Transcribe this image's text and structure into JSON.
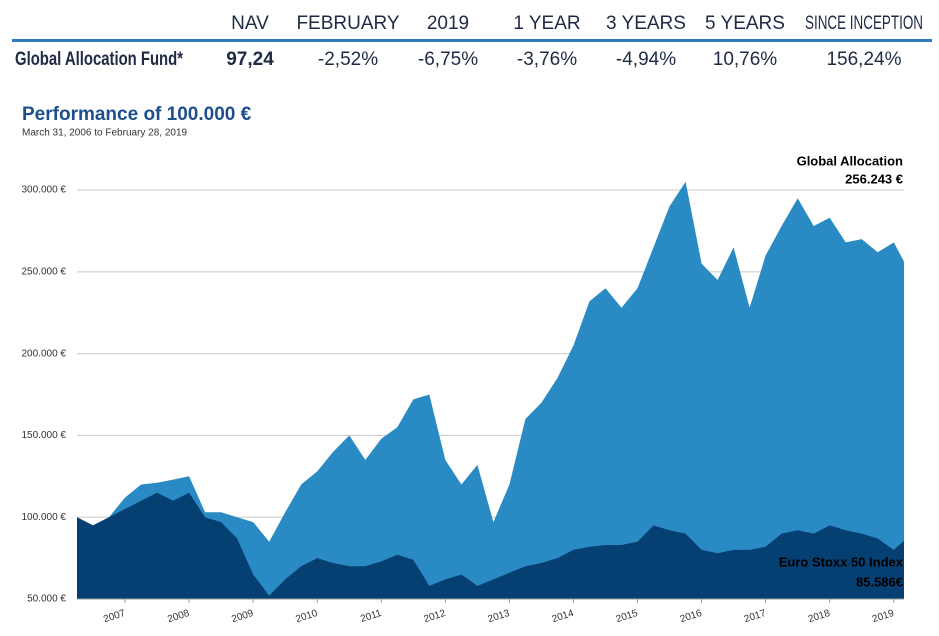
{
  "table": {
    "headers": [
      "NAV",
      "FEBRUARY",
      "2019",
      "1 YEAR",
      "3 YEARS",
      "5 YEARS",
      "SINCE INCEPTION"
    ],
    "row": {
      "label": "Global Allocation Fund*",
      "cells": [
        "97,24",
        "-2,52%",
        "-6,75%",
        "-3,76%",
        "-4,94%",
        "10,76%",
        "156,24%"
      ]
    }
  },
  "chart_data": {
    "type": "area",
    "title": "Performance of 100.000 €",
    "subtitle": "March 31, 2006 to February 28, 2019",
    "x": [
      2006.25,
      2006.5,
      2006.75,
      2007,
      2007.25,
      2007.5,
      2007.75,
      2008,
      2008.25,
      2008.5,
      2008.75,
      2009,
      2009.25,
      2009.5,
      2009.75,
      2010,
      2010.25,
      2010.5,
      2010.75,
      2011,
      2011.25,
      2011.5,
      2011.75,
      2012,
      2012.25,
      2012.5,
      2012.75,
      2013,
      2013.25,
      2013.5,
      2013.75,
      2014,
      2014.25,
      2014.5,
      2014.75,
      2015,
      2015.25,
      2015.5,
      2015.75,
      2016,
      2016.25,
      2016.5,
      2016.75,
      2017,
      2017.25,
      2017.5,
      2017.75,
      2018,
      2018.25,
      2018.5,
      2018.75,
      2019,
      2019.16
    ],
    "xlim": [
      2006.25,
      2019.16
    ],
    "xticks": [
      2007,
      2008,
      2009,
      2010,
      2011,
      2012,
      2013,
      2014,
      2015,
      2016,
      2017,
      2018,
      2019
    ],
    "ylim": [
      50000,
      320000
    ],
    "yticks": [
      {
        "value": 50000,
        "label": "50.000 €"
      },
      {
        "value": 100000,
        "label": "100.000 €"
      },
      {
        "value": 150000,
        "label": "150.000 €"
      },
      {
        "value": 200000,
        "label": "200.000 €"
      },
      {
        "value": 250000,
        "label": "250.000 €"
      },
      {
        "value": 300000,
        "label": "300.000 €"
      }
    ],
    "grid": true,
    "series": [
      {
        "name": "Global Allocation",
        "color": "#2a8bc4",
        "end_label": "256.243 €",
        "values": [
          100000,
          95000,
          100000,
          112000,
          120000,
          121000,
          123000,
          125000,
          103000,
          103000,
          100000,
          97000,
          85000,
          103000,
          120000,
          128000,
          140000,
          150000,
          135000,
          148000,
          155000,
          172000,
          175000,
          135000,
          120000,
          132000,
          97000,
          120000,
          160000,
          170000,
          185000,
          205000,
          232000,
          240000,
          228000,
          240000,
          265000,
          290000,
          305000,
          255000,
          245000,
          265000,
          228000,
          260000,
          278000,
          295000,
          278000,
          283000,
          268000,
          270000,
          262000,
          268000,
          256243
        ]
      },
      {
        "name": "Euro Stoxx 50 Index",
        "color": "#063f72",
        "end_label": "85.586€",
        "values": [
          100000,
          95000,
          100000,
          105000,
          110000,
          115000,
          110000,
          115000,
          100000,
          97000,
          87000,
          65000,
          52000,
          62000,
          70000,
          75000,
          72000,
          70000,
          70000,
          73000,
          77000,
          74000,
          58000,
          62000,
          65000,
          58000,
          62000,
          66000,
          70000,
          72000,
          75000,
          80000,
          82000,
          83000,
          83000,
          85000,
          95000,
          92000,
          90000,
          80000,
          78000,
          80000,
          80000,
          82000,
          90000,
          92000,
          90000,
          95000,
          92000,
          90000,
          87000,
          80000,
          85586
        ]
      }
    ]
  }
}
